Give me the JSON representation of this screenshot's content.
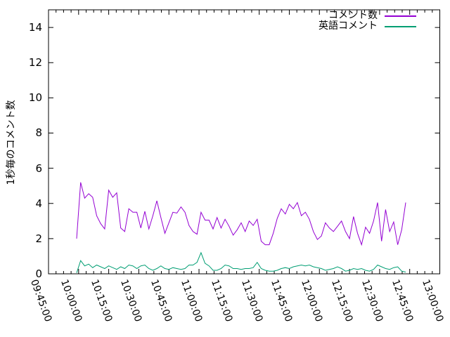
{
  "figure": {
    "background_color": "#ffffff",
    "axis_color": "#000000",
    "text_color": "#000000"
  },
  "chart_data": {
    "type": "line",
    "title": "",
    "xlabel": "",
    "ylabel": "1秒毎のコメント数",
    "grid": "off",
    "x_axis": {
      "range": [
        "09:45:00",
        "13:00:00"
      ],
      "tick_labels": [
        "09:45:00",
        "10:00:00",
        "10:15:00",
        "10:30:00",
        "10:45:00",
        "11:00:00",
        "11:15:00",
        "11:30:00",
        "11:45:00",
        "12:00:00",
        "12:15:00",
        "12:30:00",
        "12:45:00",
        "13:00:00"
      ],
      "major_tick_interval_minutes": 15,
      "minor_ticks_per_major": 4
    },
    "y_axis": {
      "range": [
        0,
        15
      ],
      "ticks": [
        0,
        2,
        4,
        6,
        8,
        10,
        12,
        14
      ]
    },
    "legend": {
      "position": "top-right-inside",
      "entries": [
        "コメント数",
        "英語コメント"
      ]
    },
    "series": [
      {
        "id": "comments",
        "name": "コメント数",
        "color": "#9400d3",
        "points": [
          [
            "09:59",
            2.0
          ],
          [
            "10:01",
            5.2
          ],
          [
            "10:03",
            4.3
          ],
          [
            "10:05",
            4.55
          ],
          [
            "10:07",
            4.35
          ],
          [
            "10:09",
            3.3
          ],
          [
            "10:11",
            2.85
          ],
          [
            "10:13",
            2.55
          ],
          [
            "10:15",
            4.75
          ],
          [
            "10:17",
            4.35
          ],
          [
            "10:19",
            4.6
          ],
          [
            "10:21",
            2.6
          ],
          [
            "10:23",
            2.4
          ],
          [
            "10:25",
            3.7
          ],
          [
            "10:27",
            3.5
          ],
          [
            "10:29",
            3.5
          ],
          [
            "10:31",
            2.6
          ],
          [
            "10:33",
            3.55
          ],
          [
            "10:35",
            2.55
          ],
          [
            "10:37",
            3.3
          ],
          [
            "10:39",
            4.15
          ],
          [
            "10:41",
            3.2
          ],
          [
            "10:43",
            2.3
          ],
          [
            "10:45",
            2.9
          ],
          [
            "10:47",
            3.5
          ],
          [
            "10:49",
            3.45
          ],
          [
            "10:51",
            3.8
          ],
          [
            "10:53",
            3.5
          ],
          [
            "10:55",
            2.75
          ],
          [
            "10:57",
            2.4
          ],
          [
            "10:59",
            2.25
          ],
          [
            "11:01",
            3.5
          ],
          [
            "11:03",
            3.05
          ],
          [
            "11:05",
            3.05
          ],
          [
            "11:07",
            2.55
          ],
          [
            "11:09",
            3.2
          ],
          [
            "11:11",
            2.6
          ],
          [
            "11:13",
            3.1
          ],
          [
            "11:15",
            2.7
          ],
          [
            "11:17",
            2.2
          ],
          [
            "11:19",
            2.5
          ],
          [
            "11:21",
            2.9
          ],
          [
            "11:23",
            2.4
          ],
          [
            "11:25",
            3.0
          ],
          [
            "11:27",
            2.75
          ],
          [
            "11:29",
            3.1
          ],
          [
            "11:31",
            1.85
          ],
          [
            "11:33",
            1.65
          ],
          [
            "11:35",
            1.65
          ],
          [
            "11:37",
            2.3
          ],
          [
            "11:39",
            3.15
          ],
          [
            "11:41",
            3.7
          ],
          [
            "11:43",
            3.4
          ],
          [
            "11:45",
            3.95
          ],
          [
            "11:47",
            3.7
          ],
          [
            "11:49",
            4.05
          ],
          [
            "11:51",
            3.3
          ],
          [
            "11:53",
            3.5
          ],
          [
            "11:55",
            3.1
          ],
          [
            "11:57",
            2.4
          ],
          [
            "11:59",
            1.95
          ],
          [
            "12:01",
            2.15
          ],
          [
            "12:03",
            2.9
          ],
          [
            "12:05",
            2.6
          ],
          [
            "12:07",
            2.4
          ],
          [
            "12:09",
            2.7
          ],
          [
            "12:11",
            3.0
          ],
          [
            "12:13",
            2.4
          ],
          [
            "12:15",
            2.0
          ],
          [
            "12:17",
            3.25
          ],
          [
            "12:19",
            2.3
          ],
          [
            "12:21",
            1.65
          ],
          [
            "12:23",
            2.65
          ],
          [
            "12:25",
            2.3
          ],
          [
            "12:27",
            3.0
          ],
          [
            "12:29",
            4.05
          ],
          [
            "12:31",
            1.85
          ],
          [
            "12:33",
            3.65
          ],
          [
            "12:35",
            2.4
          ],
          [
            "12:37",
            2.95
          ],
          [
            "12:39",
            1.65
          ],
          [
            "12:41",
            2.5
          ],
          [
            "12:43",
            4.05
          ]
        ]
      },
      {
        "id": "english-comments",
        "name": "英語コメント",
        "color": "#009e73",
        "points": [
          [
            "09:59",
            0.05
          ],
          [
            "10:01",
            0.75
          ],
          [
            "10:03",
            0.45
          ],
          [
            "10:05",
            0.55
          ],
          [
            "10:07",
            0.35
          ],
          [
            "10:09",
            0.5
          ],
          [
            "10:11",
            0.4
          ],
          [
            "10:13",
            0.3
          ],
          [
            "10:15",
            0.45
          ],
          [
            "10:17",
            0.35
          ],
          [
            "10:19",
            0.25
          ],
          [
            "10:21",
            0.4
          ],
          [
            "10:23",
            0.3
          ],
          [
            "10:25",
            0.5
          ],
          [
            "10:27",
            0.45
          ],
          [
            "10:29",
            0.3
          ],
          [
            "10:31",
            0.45
          ],
          [
            "10:33",
            0.5
          ],
          [
            "10:35",
            0.3
          ],
          [
            "10:37",
            0.2
          ],
          [
            "10:39",
            0.3
          ],
          [
            "10:41",
            0.45
          ],
          [
            "10:43",
            0.3
          ],
          [
            "10:45",
            0.25
          ],
          [
            "10:47",
            0.35
          ],
          [
            "10:49",
            0.3
          ],
          [
            "10:51",
            0.25
          ],
          [
            "10:53",
            0.3
          ],
          [
            "10:55",
            0.5
          ],
          [
            "10:57",
            0.5
          ],
          [
            "10:59",
            0.65
          ],
          [
            "11:01",
            1.2
          ],
          [
            "11:03",
            0.6
          ],
          [
            "11:05",
            0.45
          ],
          [
            "11:07",
            0.2
          ],
          [
            "11:09",
            0.2
          ],
          [
            "11:11",
            0.3
          ],
          [
            "11:13",
            0.5
          ],
          [
            "11:15",
            0.45
          ],
          [
            "11:17",
            0.3
          ],
          [
            "11:19",
            0.3
          ],
          [
            "11:21",
            0.25
          ],
          [
            "11:23",
            0.3
          ],
          [
            "11:25",
            0.3
          ],
          [
            "11:27",
            0.35
          ],
          [
            "11:29",
            0.65
          ],
          [
            "11:31",
            0.3
          ],
          [
            "11:33",
            0.2
          ],
          [
            "11:35",
            0.15
          ],
          [
            "11:37",
            0.15
          ],
          [
            "11:39",
            0.2
          ],
          [
            "11:41",
            0.3
          ],
          [
            "11:43",
            0.35
          ],
          [
            "11:45",
            0.3
          ],
          [
            "11:47",
            0.4
          ],
          [
            "11:49",
            0.45
          ],
          [
            "11:51",
            0.5
          ],
          [
            "11:53",
            0.45
          ],
          [
            "11:55",
            0.5
          ],
          [
            "11:57",
            0.4
          ],
          [
            "11:59",
            0.35
          ],
          [
            "12:01",
            0.3
          ],
          [
            "12:03",
            0.2
          ],
          [
            "12:05",
            0.25
          ],
          [
            "12:07",
            0.3
          ],
          [
            "12:09",
            0.4
          ],
          [
            "12:11",
            0.3
          ],
          [
            "12:13",
            0.15
          ],
          [
            "12:15",
            0.2
          ],
          [
            "12:17",
            0.3
          ],
          [
            "12:19",
            0.25
          ],
          [
            "12:21",
            0.3
          ],
          [
            "12:23",
            0.2
          ],
          [
            "12:25",
            0.15
          ],
          [
            "12:27",
            0.25
          ],
          [
            "12:29",
            0.5
          ],
          [
            "12:31",
            0.4
          ],
          [
            "12:33",
            0.3
          ],
          [
            "12:35",
            0.25
          ],
          [
            "12:37",
            0.35
          ],
          [
            "12:39",
            0.4
          ],
          [
            "12:41",
            0.15
          ],
          [
            "12:43",
            0.1
          ]
        ]
      }
    ]
  }
}
